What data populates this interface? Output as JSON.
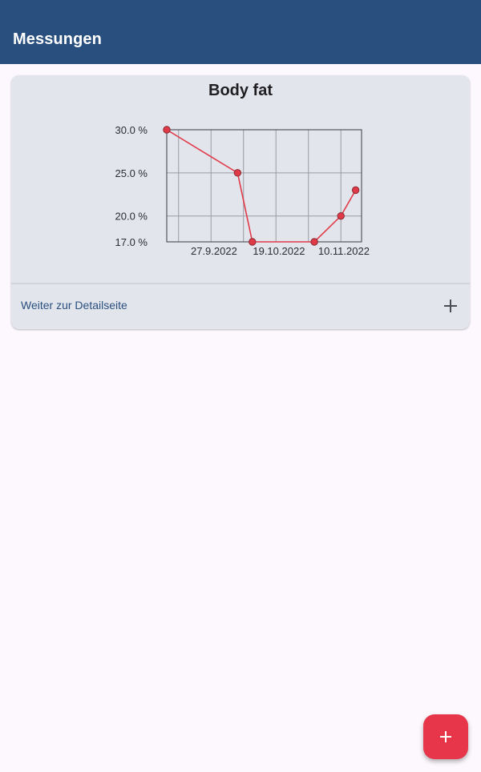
{
  "appbar": {
    "title": "Messungen"
  },
  "card": {
    "title": "Body fat",
    "detail_link": "Weiter zur Detailseite",
    "expand_icon": "plus-icon"
  },
  "fab": {
    "icon": "plus-icon",
    "color": "#e7354a"
  },
  "colors": {
    "primary": "#294f7f",
    "line": "#e03a48",
    "card_bg": "#e3e5ec"
  },
  "chart_data": {
    "type": "line",
    "title": "Body fat",
    "y_ticks": [
      "30.0 %",
      "25.0 %",
      "20.0 %",
      "17.0 %"
    ],
    "y_tick_values": [
      30,
      25,
      20,
      17
    ],
    "ylim": [
      17,
      30
    ],
    "x_ticks": [
      "27.9.2022",
      "19.10.2022",
      "10.11.2022"
    ],
    "x_tick_dates": [
      "2022-09-27",
      "2022-10-19",
      "2022-11-10"
    ],
    "xlim": [
      "2022-09-11",
      "2022-11-16"
    ],
    "grid": true,
    "series": [
      {
        "x": [
          "2022-09-11",
          "2022-10-05",
          "2022-10-10",
          "2022-10-31",
          "2022-11-09",
          "2022-11-14"
        ],
        "y": [
          30.0,
          25.0,
          17.0,
          17.0,
          20.0,
          23.0
        ]
      }
    ]
  }
}
